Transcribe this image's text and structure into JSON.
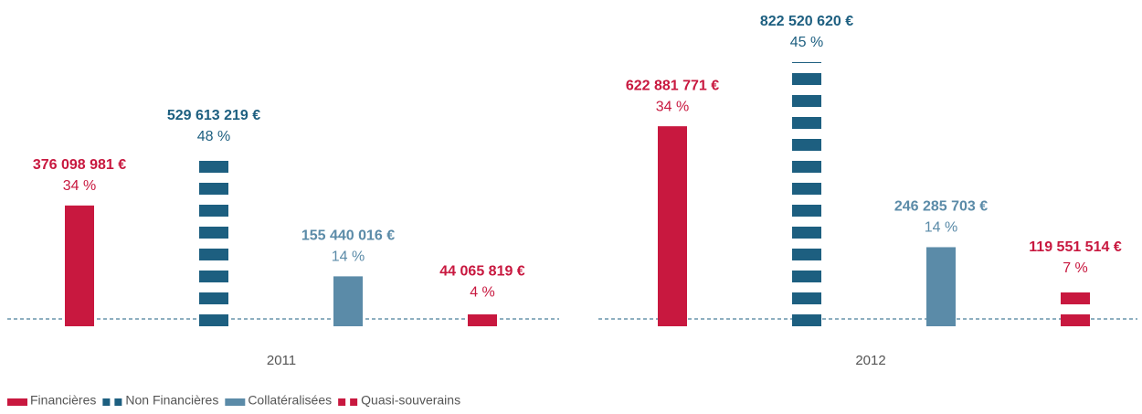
{
  "chart_data": {
    "type": "bar",
    "categories": [
      "2011",
      "2012"
    ],
    "series": [
      {
        "name": "Financières",
        "color": "#c8183f",
        "pattern": "solid",
        "values": [
          376098981,
          622881771
        ],
        "value_labels": [
          "376 098 981 €",
          "622 881 771 €"
        ],
        "shares": [
          34,
          34
        ],
        "share_labels": [
          "34 %",
          "34 %"
        ]
      },
      {
        "name": "Non Financières",
        "color": "#1d5f80",
        "pattern": "striped",
        "values": [
          529613219,
          822520620
        ],
        "value_labels": [
          "529 613 219 €",
          "822 520 620 €"
        ],
        "shares": [
          48,
          45
        ],
        "share_labels": [
          "48 %",
          "45 %"
        ]
      },
      {
        "name": "Collatéralisées",
        "color": "#5b8ba8",
        "pattern": "solid",
        "values": [
          155440016,
          246285703
        ],
        "value_labels": [
          "155 440 016 €",
          "246 285 703 €"
        ],
        "shares": [
          14,
          14
        ],
        "share_labels": [
          "14 %",
          "14 %"
        ]
      },
      {
        "name": "Quasi-souverains",
        "color": "#c8183f",
        "pattern": "striped",
        "values": [
          44065819,
          119551514
        ],
        "value_labels": [
          "44 065 819 €",
          "119 551 514 €"
        ],
        "shares": [
          4,
          7
        ],
        "share_labels": [
          "4 %",
          "7 %"
        ]
      }
    ]
  }
}
